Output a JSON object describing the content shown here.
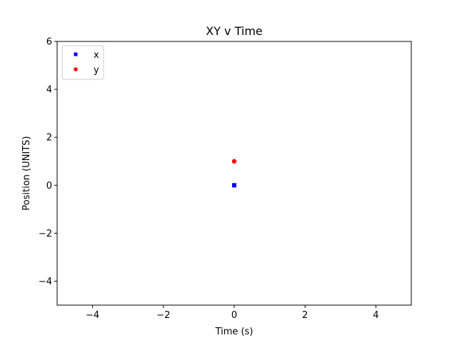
{
  "chart_data": {
    "type": "scatter",
    "title": "XY v Time",
    "xlabel": "Time (s)",
    "ylabel": "Position (UNITS)",
    "xlim": [
      -5,
      5
    ],
    "ylim": [
      -5,
      6
    ],
    "xticks": [
      -4,
      -2,
      0,
      2,
      4
    ],
    "yticks": [
      -4,
      -2,
      0,
      2,
      4,
      6
    ],
    "xtick_labels": [
      "−4",
      "−2",
      "0",
      "2",
      "4"
    ],
    "ytick_labels": [
      "−4",
      "−2",
      "0",
      "2",
      "4",
      "6"
    ],
    "grid": false,
    "legend_position": "top-left",
    "series": [
      {
        "name": "x",
        "color": "#0000ff",
        "marker": "square",
        "points": [
          {
            "x": 0,
            "y": 0
          }
        ]
      },
      {
        "name": "y",
        "color": "#ff0000",
        "marker": "circle",
        "points": [
          {
            "x": 0,
            "y": 1
          }
        ]
      }
    ]
  }
}
